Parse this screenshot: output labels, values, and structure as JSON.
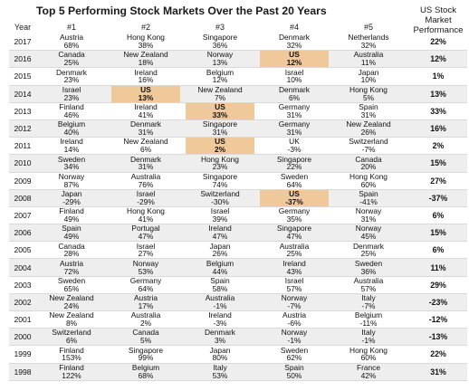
{
  "chart_data": {
    "type": "table",
    "title": "Top 5 Performing Stock Markets Over the Past 20 Years",
    "year_header": "Year",
    "rank_headers": [
      "#1",
      "#2",
      "#3",
      "#4",
      "#5"
    ],
    "us_header": "US Stock Market Performance",
    "highlight_country": "US",
    "highlight_color": "#f0c99b",
    "rows": [
      {
        "year": "2017",
        "us": "22%",
        "markets": [
          [
            "Austria",
            "68%"
          ],
          [
            "Hong Kong",
            "38%"
          ],
          [
            "Singapore",
            "36%"
          ],
          [
            "Denmark",
            "32%"
          ],
          [
            "Netherlands",
            "32%"
          ]
        ]
      },
      {
        "year": "2016",
        "us": "12%",
        "markets": [
          [
            "Canada",
            "25%"
          ],
          [
            "New Zealand",
            "18%"
          ],
          [
            "Norway",
            "13%"
          ],
          [
            "US",
            "12%"
          ],
          [
            "Australia",
            "11%"
          ]
        ]
      },
      {
        "year": "2015",
        "us": "1%",
        "markets": [
          [
            "Denmark",
            "23%"
          ],
          [
            "Ireland",
            "16%"
          ],
          [
            "Belgium",
            "12%"
          ],
          [
            "Israel",
            "10%"
          ],
          [
            "Japan",
            "10%"
          ]
        ]
      },
      {
        "year": "2014",
        "us": "13%",
        "markets": [
          [
            "Israel",
            "23%"
          ],
          [
            "US",
            "13%"
          ],
          [
            "New Zealand",
            "7%"
          ],
          [
            "Denmark",
            "6%"
          ],
          [
            "Hong Kong",
            "5%"
          ]
        ]
      },
      {
        "year": "2013",
        "us": "33%",
        "markets": [
          [
            "Finland",
            "46%"
          ],
          [
            "Ireland",
            "41%"
          ],
          [
            "US",
            "33%"
          ],
          [
            "Germany",
            "31%"
          ],
          [
            "Spain",
            "31%"
          ]
        ]
      },
      {
        "year": "2012",
        "us": "16%",
        "markets": [
          [
            "Belgium",
            "40%"
          ],
          [
            "Denmark",
            "31%"
          ],
          [
            "Singapore",
            "31%"
          ],
          [
            "Germany",
            "31%"
          ],
          [
            "New Zealand",
            "26%"
          ]
        ]
      },
      {
        "year": "2011",
        "us": "2%",
        "markets": [
          [
            "Ireland",
            "14%"
          ],
          [
            "New Zealand",
            "6%"
          ],
          [
            "US",
            "2%"
          ],
          [
            "UK",
            "-3%"
          ],
          [
            "Switzerland",
            "-7%"
          ]
        ]
      },
      {
        "year": "2010",
        "us": "15%",
        "markets": [
          [
            "Sweden",
            "34%"
          ],
          [
            "Denmark",
            "31%"
          ],
          [
            "Hong Kong",
            "23%"
          ],
          [
            "Singapore",
            "22%"
          ],
          [
            "Canada",
            "20%"
          ]
        ]
      },
      {
        "year": "2009",
        "us": "27%",
        "markets": [
          [
            "Norway",
            "87%"
          ],
          [
            "Australia",
            "76%"
          ],
          [
            "Singapore",
            "74%"
          ],
          [
            "Sweden",
            "64%"
          ],
          [
            "Hong Kong",
            "60%"
          ]
        ]
      },
      {
        "year": "2008",
        "us": "-37%",
        "markets": [
          [
            "Japan",
            "-29%"
          ],
          [
            "Israel",
            "-29%"
          ],
          [
            "Switzerland",
            "-30%"
          ],
          [
            "US",
            "-37%"
          ],
          [
            "Spain",
            "-41%"
          ]
        ]
      },
      {
        "year": "2007",
        "us": "6%",
        "markets": [
          [
            "Finland",
            "49%"
          ],
          [
            "Hong Kong",
            "41%"
          ],
          [
            "Israel",
            "39%"
          ],
          [
            "Germany",
            "35%"
          ],
          [
            "Norway",
            "31%"
          ]
        ]
      },
      {
        "year": "2006",
        "us": "15%",
        "markets": [
          [
            "Spain",
            "49%"
          ],
          [
            "Portugal",
            "47%"
          ],
          [
            "Ireland",
            "47%"
          ],
          [
            "Singapore",
            "47%"
          ],
          [
            "Norway",
            "45%"
          ]
        ]
      },
      {
        "year": "2005",
        "us": "6%",
        "markets": [
          [
            "Canada",
            "28%"
          ],
          [
            "Israel",
            "27%"
          ],
          [
            "Japan",
            "26%"
          ],
          [
            "Australia",
            "25%"
          ],
          [
            "Denmark",
            "25%"
          ]
        ]
      },
      {
        "year": "2004",
        "us": "11%",
        "markets": [
          [
            "Austria",
            "72%"
          ],
          [
            "Norway",
            "53%"
          ],
          [
            "Belgium",
            "44%"
          ],
          [
            "Ireland",
            "43%"
          ],
          [
            "Sweden",
            "36%"
          ]
        ]
      },
      {
        "year": "2003",
        "us": "29%",
        "markets": [
          [
            "Sweden",
            "65%"
          ],
          [
            "Germany",
            "64%"
          ],
          [
            "Spain",
            "58%"
          ],
          [
            "Israel",
            "57%"
          ],
          [
            "Australia",
            "57%"
          ]
        ]
      },
      {
        "year": "2002",
        "us": "-23%",
        "markets": [
          [
            "New Zealand",
            "24%"
          ],
          [
            "Austria",
            "17%"
          ],
          [
            "Australia",
            "-1%"
          ],
          [
            "Norway",
            "-7%"
          ],
          [
            "Italy",
            "-7%"
          ]
        ]
      },
      {
        "year": "2001",
        "us": "-12%",
        "markets": [
          [
            "New Zealand",
            "8%"
          ],
          [
            "Australia",
            "2%"
          ],
          [
            "Ireland",
            "-3%"
          ],
          [
            "Austria",
            "-6%"
          ],
          [
            "Belgium",
            "-11%"
          ]
        ]
      },
      {
        "year": "2000",
        "us": "-13%",
        "markets": [
          [
            "Switzerland",
            "6%"
          ],
          [
            "Canada",
            "5%"
          ],
          [
            "Denmark",
            "3%"
          ],
          [
            "Norway",
            "-1%"
          ],
          [
            "Italy",
            "-1%"
          ]
        ]
      },
      {
        "year": "1999",
        "us": "22%",
        "markets": [
          [
            "Finland",
            "153%"
          ],
          [
            "Singapore",
            "99%"
          ],
          [
            "Japan",
            "80%"
          ],
          [
            "Sweden",
            "62%"
          ],
          [
            "Hong Kong",
            "60%"
          ]
        ]
      },
      {
        "year": "1998",
        "us": "31%",
        "markets": [
          [
            "Finland",
            "122%"
          ],
          [
            "Belgium",
            "68%"
          ],
          [
            "Italy",
            "53%"
          ],
          [
            "Spain",
            "50%"
          ],
          [
            "France",
            "42%"
          ]
        ]
      }
    ]
  }
}
